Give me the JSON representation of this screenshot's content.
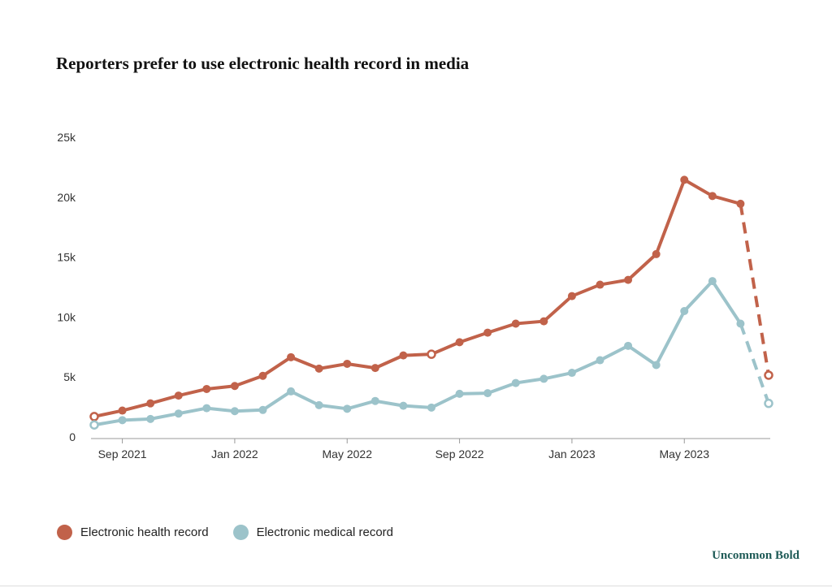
{
  "title": "Reporters prefer to use electronic health record in media",
  "brand": "Uncommon Bold",
  "colors": {
    "health": "#c1624a",
    "medical": "#9cc3ca",
    "axis": "#999999"
  },
  "chart_data": {
    "type": "line",
    "title": "Reporters prefer to use electronic health record in media",
    "xlabel": "",
    "ylabel": "",
    "ylim": [
      0,
      25000
    ],
    "y_ticks": [
      0,
      5000,
      10000,
      15000,
      20000,
      25000
    ],
    "y_tick_labels": [
      "0",
      "5k",
      "10k",
      "15k",
      "20k",
      "25k"
    ],
    "x": [
      "Aug 2021",
      "Sep 2021",
      "Oct 2021",
      "Nov 2021",
      "Dec 2021",
      "Jan 2022",
      "Feb 2022",
      "Mar 2022",
      "Apr 2022",
      "May 2022",
      "Jun 2022",
      "Jul 2022",
      "Aug 2022",
      "Sep 2022",
      "Oct 2022",
      "Nov 2022",
      "Dec 2022",
      "Jan 2023",
      "Feb 2023",
      "Mar 2023",
      "Apr 2023",
      "May 2023",
      "Jun 2023",
      "Jul 2023",
      "Aug 2023"
    ],
    "x_tick_labels": [
      "Sep 2021",
      "Jan 2022",
      "May 2022",
      "Sep 2022",
      "Jan 2023",
      "May 2023"
    ],
    "x_tick_indices": [
      1,
      5,
      9,
      13,
      17,
      21
    ],
    "series": [
      {
        "name": "Electronic health record",
        "color": "#c1624a",
        "values": [
          1700,
          2200,
          2800,
          3450,
          4000,
          4250,
          5100,
          6650,
          5700,
          6100,
          5750,
          6800,
          6900,
          7900,
          8700,
          9450,
          9650,
          11750,
          12700,
          13100,
          15250,
          21450,
          20100,
          19450,
          5150
        ],
        "open_points": [
          0,
          12,
          24
        ],
        "dashed_last_segment": true
      },
      {
        "name": "Electronic medical record",
        "color": "#9cc3ca",
        "values": [
          1000,
          1400,
          1500,
          1950,
          2400,
          2150,
          2250,
          3800,
          2650,
          2350,
          3000,
          2600,
          2450,
          3600,
          3650,
          4500,
          4850,
          5350,
          6400,
          7600,
          6000,
          10500,
          13000,
          9450,
          2800
        ],
        "open_points": [
          0,
          24
        ],
        "dashed_last_segment": true
      }
    ],
    "legend_position": "bottom-left"
  },
  "legend": [
    {
      "label": "Electronic health record",
      "color": "#c1624a"
    },
    {
      "label": "Electronic medical record",
      "color": "#9cc3ca"
    }
  ]
}
